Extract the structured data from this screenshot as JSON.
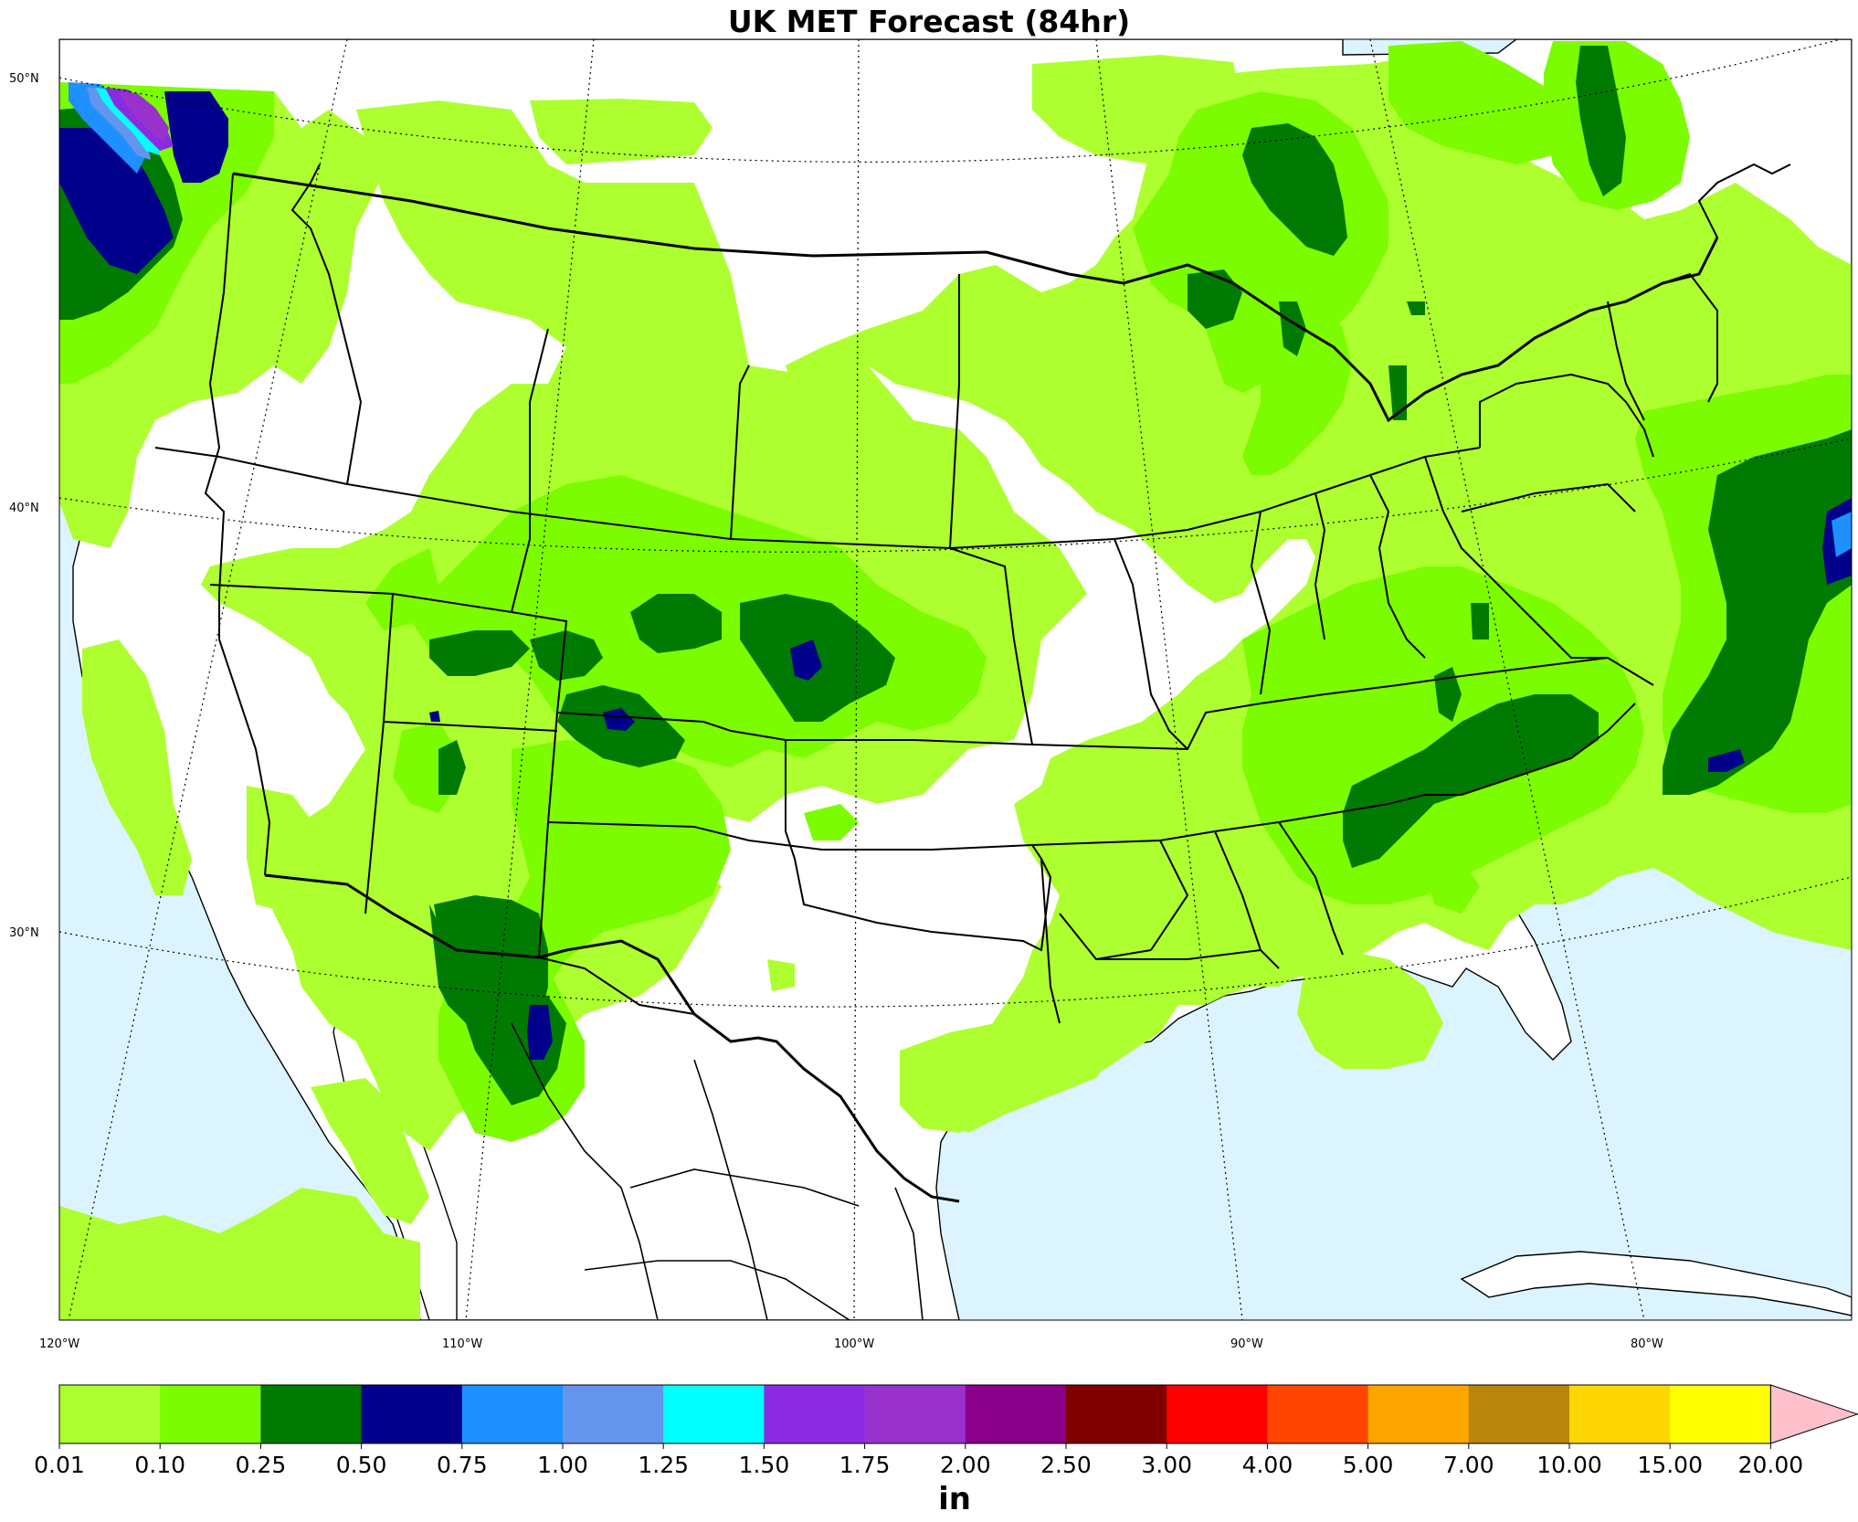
{
  "title": "UK MET Forecast (84hr)",
  "latitude_labels": [
    "50°N",
    "40°N",
    "30°N"
  ],
  "longitude_labels": [
    "120°W",
    "110°W",
    "100°W",
    "90°W",
    "80°W"
  ],
  "colorbar": {
    "unit": "in",
    "ticks": [
      "0.01",
      "0.10",
      "0.25",
      "0.50",
      "0.75",
      "1.00",
      "1.25",
      "1.50",
      "1.75",
      "2.00",
      "2.50",
      "3.00",
      "4.00",
      "5.00",
      "7.00",
      "10.00",
      "15.00",
      "20.00"
    ],
    "colors": [
      "#adff2f",
      "#7cfc00",
      "#007a00",
      "#00008b",
      "#1e90ff",
      "#6495ed",
      "#00ffff",
      "#8a2be2",
      "#9932cc",
      "#8b008b",
      "#800000",
      "#ff0000",
      "#ff4500",
      "#ffa500",
      "#b8860b",
      "#ffd700",
      "#ffff00"
    ],
    "over_color": "#ffc0cb"
  },
  "colors": {
    "ocean": "#dcf4ff",
    "land": "#ffffff",
    "border": "#000000"
  }
}
